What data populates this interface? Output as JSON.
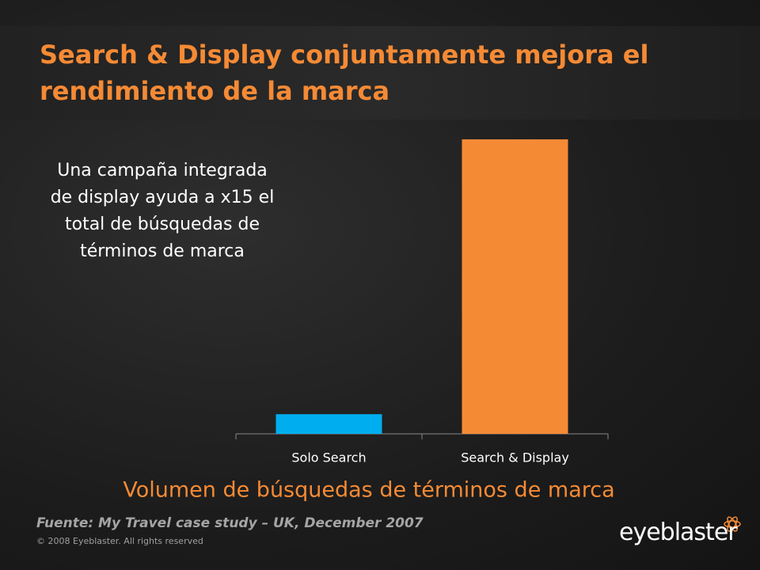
{
  "header": {
    "title": "Search & Display conjuntamente mejora el rendimiento de la marca"
  },
  "callout": "Una campaña integrada de display ayuda a x15 el total de búsquedas de términos de marca",
  "chart_data": {
    "type": "bar",
    "categories": [
      "Solo Search",
      "Search & Display"
    ],
    "x_label": "Volumen de búsquedas de términos de marca",
    "series": [
      {
        "values": [
          1,
          15
        ],
        "colors": [
          "#00aeef",
          "#f58a35"
        ]
      }
    ]
  },
  "footer": {
    "source": "Fuente: My Travel case study – UK, December 2007",
    "copyright": "© 2008 Eyeblaster. All rights reserved",
    "logo": "eyeblaster"
  }
}
